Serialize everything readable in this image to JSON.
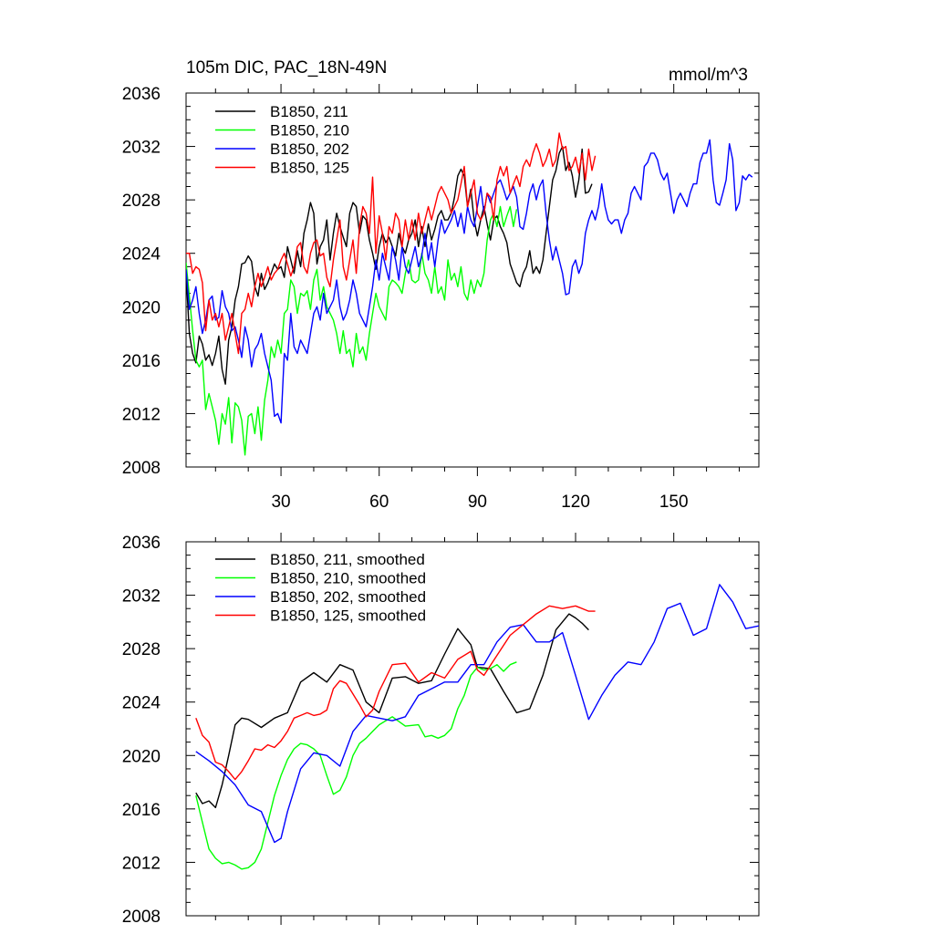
{
  "chart_data": [
    {
      "type": "line",
      "title": "105m DIC, PAC_18N-49N",
      "units": "mmol/m^3",
      "xlabel": "",
      "ylabel": "",
      "xlim": [
        1,
        176
      ],
      "ylim": [
        2008,
        2036
      ],
      "xticks": [
        30,
        60,
        90,
        120,
        150
      ],
      "yticks": [
        2008,
        2012,
        2016,
        2020,
        2024,
        2028,
        2032,
        2036
      ],
      "legend_position": "top-left",
      "series": [
        {
          "name": "B1850, 211",
          "color": "#000000",
          "x_start": 1,
          "values": [
            2022.5,
            2018.0,
            2016.5,
            2015.8,
            2017.8,
            2017.2,
            2016.0,
            2016.4,
            2015.6,
            2016.5,
            2017.8,
            2015.3,
            2014.2,
            2017.5,
            2018.5,
            2020.5,
            2021.5,
            2023.2,
            2023.3,
            2023.8,
            2023.4,
            2021.5,
            2020.8,
            2022.5,
            2021.3,
            2021.8,
            2022.5,
            2023.2,
            2022.8,
            2023.0,
            2022.2,
            2024.5,
            2023.5,
            2022.5,
            2024.2,
            2023.0,
            2025.5,
            2026.5,
            2027.8,
            2027.0,
            2023.2,
            2024.5,
            2025.0,
            2026.5,
            2023.5,
            2025.5,
            2027.0,
            2026.0,
            2025.2,
            2024.5,
            2027.0,
            2027.8,
            2027.5,
            2025.5,
            2026.8,
            2026.5,
            2025.0,
            2024.0,
            2022.8,
            2024.5,
            2025.5,
            2024.8,
            2025.2,
            2024.5,
            2023.8,
            2025.5,
            2024.5,
            2024.0,
            2025.0,
            2025.5,
            2026.5,
            2024.5,
            2026.0,
            2024.5,
            2026.2,
            2025.0,
            2025.8,
            2026.8,
            2027.2,
            2026.5,
            2026.5,
            2027.0,
            2028.2,
            2029.8,
            2030.3,
            2029.8,
            2027.5,
            2028.8,
            2026.5,
            2025.3,
            2026.5,
            2027.5,
            2026.2,
            2025.0,
            2026.5,
            2026.8,
            2026.0,
            2025.5,
            2024.8,
            2023.2,
            2022.5,
            2021.8,
            2021.5,
            2022.5,
            2023.0,
            2024.2,
            2022.5,
            2023.0,
            2022.5,
            2023.5,
            2025.5,
            2027.5,
            2029.5,
            2030.2,
            2031.5,
            2032.0,
            2030.2,
            2030.8,
            2029.8,
            2028.2,
            2029.5,
            2031.8,
            2028.5,
            2028.6,
            2029.2
          ],
          "x_end_note": "ends near x=127"
        },
        {
          "name": "B1850, 210",
          "color": "#00ff00",
          "x_start": 1,
          "values": [
            2023.3,
            2020.8,
            2018.2,
            2016.0,
            2015.5,
            2016.0,
            2012.3,
            2013.5,
            2012.5,
            2011.5,
            2009.7,
            2012.0,
            2011.2,
            2013.2,
            2009.8,
            2012.8,
            2012.5,
            2011.5,
            2008.9,
            2011.8,
            2012.0,
            2010.5,
            2012.5,
            2010.0,
            2013.0,
            2014.5,
            2017.0,
            2016.2,
            2017.5,
            2016.5,
            2019.5,
            2019.8,
            2022.0,
            2021.5,
            2019.5,
            2021.0,
            2020.8,
            2021.2,
            2019.8,
            2022.0,
            2022.8,
            2020.5,
            2021.5,
            2020.0,
            2019.5,
            2019.0,
            2018.0,
            2016.5,
            2018.2,
            2016.5,
            2016.8,
            2015.5,
            2018.0,
            2016.5,
            2017.0,
            2016.0,
            2018.0,
            2019.5,
            2021.0,
            2020.0,
            2019.5,
            2019.0,
            2021.5,
            2022.0,
            2021.8,
            2021.5,
            2021.0,
            2022.5,
            2023.5,
            2022.0,
            2021.8,
            2022.0,
            2024.0,
            2022.5,
            2022.0,
            2021.0,
            2023.0,
            2021.0,
            2021.5,
            2020.5,
            2023.5,
            2022.0,
            2022.5,
            2021.5,
            2023.0,
            2021.0,
            2020.5,
            2022.0,
            2021.0,
            2022.0,
            2021.5,
            2022.5,
            2025.0,
            2026.5,
            2027.0,
            2026.0,
            2027.5,
            2026.0,
            2026.8,
            2027.5,
            2026.0,
            2027.3
          ]
        },
        {
          "name": "B1850, 202",
          "color": "#0000ff",
          "x_start": 1,
          "values": [
            2022.8,
            2019.8,
            2020.5,
            2021.5,
            2019.5,
            2018.0,
            2019.0,
            2020.5,
            2020.8,
            2019.0,
            2019.2,
            2021.2,
            2020.0,
            2019.5,
            2018.2,
            2018.5,
            2017.5,
            2016.2,
            2018.5,
            2017.5,
            2015.5,
            2016.8,
            2017.2,
            2018.0,
            2016.5,
            2015.5,
            2014.5,
            2011.8,
            2012.0,
            2011.3,
            2016.5,
            2016.0,
            2019.5,
            2017.0,
            2016.5,
            2017.5,
            2017.0,
            2016.5,
            2018.0,
            2019.5,
            2020.0,
            2019.0,
            2021.0,
            2019.5,
            2020.0,
            2020.5,
            2022.0,
            2020.0,
            2019.0,
            2019.5,
            2020.5,
            2022.0,
            2021.0,
            2019.5,
            2019.0,
            2018.5,
            2020.0,
            2021.5,
            2023.5,
            2022.0,
            2024.0,
            2023.0,
            2022.0,
            2024.5,
            2023.5,
            2022.0,
            2024.5,
            2023.0,
            2022.5,
            2023.5,
            2024.5,
            2023.0,
            2023.8,
            2025.5,
            2023.5,
            2024.8,
            2023.0,
            2025.0,
            2026.5,
            2025.5,
            2026.0,
            2026.5,
            2027.2,
            2026.0,
            2027.0,
            2025.5,
            2027.5,
            2026.5,
            2026.0,
            2027.5,
            2029.0,
            2027.0,
            2028.5,
            2027.8,
            2028.5,
            2029.2,
            2029.5,
            2028.8,
            2028.0,
            2028.5,
            2029.0,
            2028.2,
            2026.0,
            2025.8,
            2027.0,
            2028.5,
            2029.2,
            2028.0,
            2029.0,
            2029.5,
            2027.0,
            2025.0,
            2023.5,
            2024.5,
            2023.5,
            2022.5,
            2020.9,
            2021.0,
            2023.0,
            2023.5,
            2022.5,
            2023.2,
            2025.5,
            2026.5,
            2027.2,
            2026.5,
            2027.5,
            2029.2,
            2027.5,
            2026.5,
            2026.2,
            2026.5,
            2026.5,
            2025.5,
            2026.5,
            2027.0,
            2028.5,
            2029.0,
            2028.5,
            2028.0,
            2030.5,
            2030.8,
            2031.5,
            2031.5,
            2031.0,
            2030.0,
            2029.5,
            2030.0,
            2028.5,
            2027.0,
            2028.0,
            2028.5,
            2028.0,
            2027.5,
            2028.5,
            2029.2,
            2029.2,
            2030.8,
            2031.5,
            2031.5,
            2032.5,
            2029.5,
            2027.8,
            2027.6,
            2028.5,
            2029.5,
            2032.2,
            2031.0,
            2027.2,
            2027.8,
            2029.8,
            2029.5,
            2029.9,
            2029.7
          ],
          "x_end_note": "ends near x=175"
        },
        {
          "name": "B1850, 125",
          "color": "#ff0000",
          "x_start": 1,
          "values": [
            2024.0,
            2024.0,
            2022.5,
            2023.0,
            2022.8,
            2021.8,
            2018.2,
            2020.5,
            2019.0,
            2019.5,
            2018.5,
            2019.5,
            2017.5,
            2018.5,
            2019.5,
            2018.0,
            2016.5,
            2019.5,
            2019.8,
            2021.0,
            2020.0,
            2021.5,
            2022.5,
            2021.5,
            2022.2,
            2023.0,
            2022.0,
            2022.5,
            2022.8,
            2023.5,
            2024.0,
            2023.2,
            2022.3,
            2023.0,
            2024.5,
            2024.8,
            2023.0,
            2022.5,
            2024.0,
            2024.8,
            2025.0,
            2023.8,
            2024.0,
            2022.2,
            2021.5,
            2023.5,
            2025.0,
            2026.5,
            2023.0,
            2022.0,
            2023.5,
            2025.0,
            2022.5,
            2026.0,
            2027.5,
            2027.0,
            2025.5,
            2029.7,
            2024.0,
            2026.8,
            2025.5,
            2023.5,
            2026.0,
            2025.5,
            2027.0,
            2026.5,
            2024.5,
            2026.5,
            2025.0,
            2026.5,
            2025.0,
            2027.0,
            2025.5,
            2026.5,
            2027.5,
            2026.5,
            2027.5,
            2028.5,
            2029.0,
            2028.5,
            2028.0,
            2027.0,
            2027.5,
            2028.0,
            2029.2,
            2030.5,
            2027.5,
            2028.5,
            2029.5,
            2027.0,
            2026.5,
            2027.0,
            2028.5,
            2028.2,
            2026.5,
            2029.5,
            2030.5,
            2029.8,
            2030.5,
            2028.5,
            2029.2,
            2029.8,
            2029.0,
            2030.5,
            2031.0,
            2030.5,
            2031.5,
            2032.2,
            2031.5,
            2030.5,
            2031.0,
            2031.8,
            2030.5,
            2031.0,
            2033.0,
            2031.8,
            2032.0,
            2030.2,
            2030.5,
            2031.2,
            2030.0,
            2031.5,
            2029.5,
            2031.8,
            2030.2,
            2031.3
          ]
        }
      ]
    },
    {
      "type": "line",
      "title": "",
      "xlabel": "",
      "ylabel": "",
      "xlim": [
        1,
        176
      ],
      "ylim": [
        2008,
        2036
      ],
      "xticks": [
        30,
        60,
        90,
        120,
        150
      ],
      "yticks": [
        2008,
        2012,
        2016,
        2020,
        2024,
        2028,
        2032,
        2036
      ],
      "legend_position": "top-left",
      "series": [
        {
          "name": "B1850, 211, smoothed",
          "color": "#000000",
          "x_points": [
            4,
            6,
            8,
            10,
            12,
            14,
            16,
            18,
            20,
            24,
            28,
            32,
            36,
            40,
            44,
            48,
            52,
            56,
            60,
            64,
            68,
            72,
            76,
            80,
            84,
            88,
            90,
            94,
            98,
            102,
            106,
            110,
            114,
            118,
            120,
            122,
            124
          ],
          "values": [
            2017.2,
            2016.4,
            2016.6,
            2016.1,
            2017.8,
            2020.0,
            2022.3,
            2022.8,
            2022.7,
            2022.1,
            2022.8,
            2023.2,
            2025.5,
            2026.2,
            2025.5,
            2026.8,
            2026.4,
            2024.0,
            2023.2,
            2025.8,
            2025.9,
            2025.4,
            2025.6,
            2027.6,
            2029.5,
            2028.3,
            2026.6,
            2026.5,
            2024.8,
            2023.2,
            2023.5,
            2026.0,
            2029.4,
            2030.6,
            2030.3,
            2029.9,
            2029.4
          ]
        },
        {
          "name": "B1850, 210, smoothed",
          "color": "#00ff00",
          "x_points": [
            4,
            6,
            8,
            10,
            12,
            14,
            16,
            18,
            20,
            22,
            24,
            26,
            28,
            30,
            32,
            34,
            36,
            38,
            40,
            42,
            44,
            46,
            48,
            50,
            52,
            54,
            56,
            58,
            60,
            64,
            68,
            72,
            74,
            76,
            78,
            80,
            82,
            84,
            86,
            88,
            90,
            92,
            94,
            96,
            98,
            100,
            102
          ],
          "values": [
            2017.0,
            2015.0,
            2013.0,
            2012.3,
            2011.9,
            2012.0,
            2011.8,
            2011.5,
            2011.6,
            2012.0,
            2013.0,
            2015.0,
            2017.0,
            2018.5,
            2019.7,
            2020.5,
            2020.9,
            2020.8,
            2020.5,
            2020.0,
            2018.5,
            2017.1,
            2017.4,
            2018.4,
            2020.0,
            2020.9,
            2021.3,
            2021.8,
            2022.3,
            2022.9,
            2022.2,
            2022.3,
            2021.4,
            2021.5,
            2021.3,
            2021.5,
            2022.0,
            2023.5,
            2024.5,
            2026.0,
            2026.6,
            2026.4,
            2026.5,
            2026.8,
            2026.3,
            2026.8,
            2027.0
          ]
        },
        {
          "name": "B1850, 202, smoothed",
          "color": "#0000ff",
          "x_points": [
            4,
            8,
            12,
            16,
            20,
            24,
            28,
            30,
            32,
            36,
            40,
            44,
            48,
            52,
            56,
            60,
            64,
            68,
            72,
            76,
            80,
            84,
            88,
            92,
            96,
            100,
            104,
            108,
            112,
            116,
            120,
            124,
            128,
            132,
            136,
            140,
            144,
            148,
            152,
            156,
            160,
            164,
            168,
            172,
            176
          ],
          "values": [
            2020.3,
            2019.6,
            2018.8,
            2017.8,
            2016.3,
            2015.8,
            2013.5,
            2013.8,
            2015.8,
            2019.0,
            2020.2,
            2020.0,
            2019.2,
            2021.8,
            2023.0,
            2022.8,
            2022.6,
            2022.9,
            2024.5,
            2025.0,
            2025.5,
            2025.5,
            2026.8,
            2026.8,
            2028.5,
            2029.6,
            2029.8,
            2028.5,
            2028.5,
            2029.2,
            2026.0,
            2022.7,
            2024.5,
            2026.0,
            2027.0,
            2026.8,
            2028.5,
            2031.0,
            2031.4,
            2029.0,
            2029.5,
            2032.8,
            2031.5,
            2029.5,
            2029.7
          ]
        },
        {
          "name": "B1850, 125, smoothed",
          "color": "#ff0000",
          "x_points": [
            4,
            6,
            8,
            10,
            12,
            14,
            16,
            18,
            20,
            22,
            24,
            26,
            28,
            30,
            32,
            34,
            36,
            38,
            40,
            42,
            44,
            46,
            48,
            50,
            52,
            54,
            56,
            58,
            60,
            64,
            68,
            72,
            76,
            80,
            84,
            88,
            90,
            92,
            96,
            100,
            104,
            108,
            112,
            116,
            120,
            124,
            126
          ],
          "values": [
            2022.8,
            2021.5,
            2021.0,
            2019.5,
            2019.3,
            2018.8,
            2018.2,
            2018.8,
            2019.6,
            2020.5,
            2020.4,
            2020.8,
            2020.6,
            2021.1,
            2021.8,
            2022.8,
            2023.0,
            2023.2,
            2023.0,
            2023.1,
            2023.4,
            2025.0,
            2025.6,
            2025.4,
            2024.6,
            2023.8,
            2022.9,
            2023.4,
            2024.8,
            2026.8,
            2026.9,
            2025.5,
            2026.2,
            2025.8,
            2027.2,
            2027.8,
            2026.4,
            2026.0,
            2027.5,
            2029.0,
            2029.8,
            2030.6,
            2031.2,
            2031.0,
            2031.2,
            2030.8,
            2030.8
          ]
        }
      ]
    }
  ]
}
